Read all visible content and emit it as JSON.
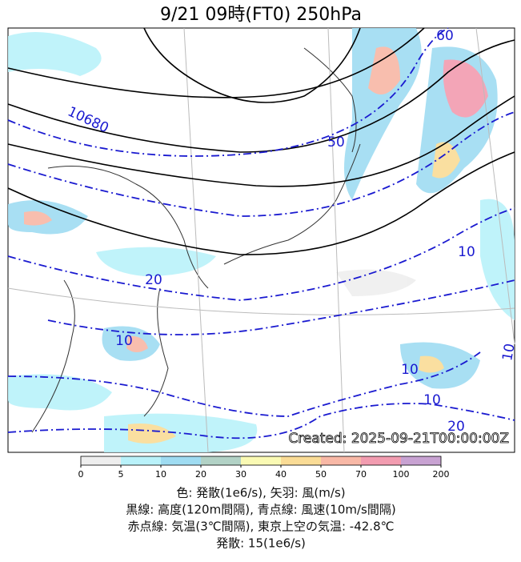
{
  "title": "9/21  09時(FT0)    250hPa",
  "contour_labels": [
    "10680",
    "50",
    "60",
    "10",
    "20",
    "10",
    "10",
    "10",
    "20",
    "10"
  ],
  "stamp": "Created: 2025-09-21T00:00:00Z",
  "colorbar": {
    "ticks": [
      0,
      5,
      10,
      20,
      30,
      40,
      50,
      70,
      100,
      200
    ],
    "colors": [
      "#eeeeee",
      "#b9f2fa",
      "#9fdcf2",
      "#b2d2c6",
      "#fafab4",
      "#fadc96",
      "#f8b8a6",
      "#f29cb0",
      "#c8a2d2"
    ]
  },
  "caption": [
    "色: 発散(1e6/s), 矢羽: 風(m/s)",
    "黒線: 高度(120m間隔), 青点線: 風速(10m/s間隔)",
    "赤点線: 気温(3℃間隔), 東京上空の気温: -42.8℃",
    "発散: 15(1e6/s)"
  ]
}
